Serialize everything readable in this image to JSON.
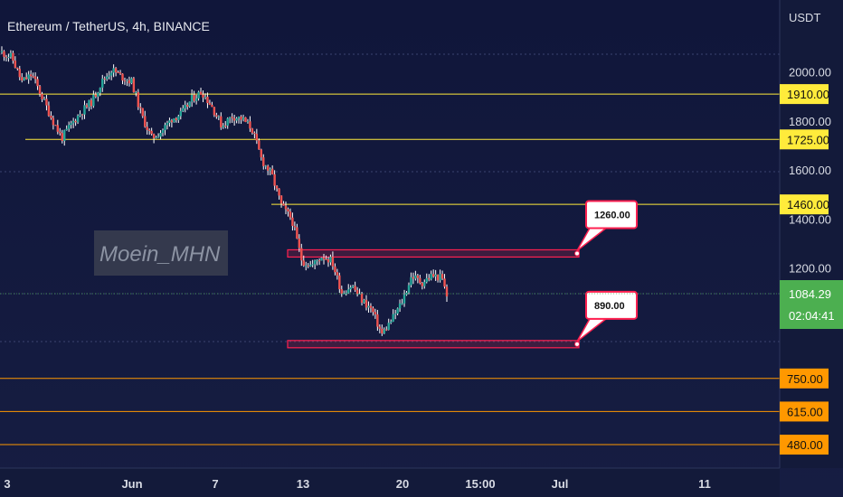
{
  "chart_title": "Ethereum / TetherUS, 4h, BINANCE",
  "watermark": "Moein_MHN",
  "currency_label": "USDT",
  "colors": {
    "background": "#131a3a",
    "bull": "#26a69a",
    "bear": "#ef5350",
    "wick": "#ffffff",
    "yellow_line": "#ffeb3b",
    "orange_line": "#ff9800",
    "zone": "#ff2050",
    "last_price": "#4caf50"
  },
  "last_price": {
    "value": "1084.29",
    "countdown": "02:04:41"
  },
  "chart_data": {
    "type": "candlestick",
    "title": "Ethereum / TetherUS, 4h, BINANCE",
    "xlabel": "",
    "ylabel": "USDT",
    "ylim": [
      460,
      2140
    ],
    "x_ticks": [
      "3",
      "Jun",
      "7",
      "13",
      "20",
      "15:00",
      "Jul",
      "11"
    ],
    "y_ticks": [
      "2000.00",
      "1800.00",
      "1600.00",
      "1400.00",
      "1200.00"
    ],
    "price_path": [
      [
        0,
        2080
      ],
      [
        2,
        2060
      ],
      [
        4,
        1960
      ],
      [
        6,
        1990
      ],
      [
        8,
        1900
      ],
      [
        10,
        1810
      ],
      [
        12,
        1730
      ],
      [
        14,
        1790
      ],
      [
        16,
        1840
      ],
      [
        18,
        1880
      ],
      [
        20,
        1960
      ],
      [
        22,
        2010
      ],
      [
        24,
        1980
      ],
      [
        26,
        1960
      ],
      [
        28,
        1820
      ],
      [
        30,
        1730
      ],
      [
        32,
        1760
      ],
      [
        34,
        1810
      ],
      [
        36,
        1830
      ],
      [
        38,
        1890
      ],
      [
        40,
        1920
      ],
      [
        42,
        1860
      ],
      [
        44,
        1780
      ],
      [
        46,
        1820
      ],
      [
        48,
        1810
      ],
      [
        50,
        1770
      ],
      [
        52,
        1640
      ],
      [
        54,
        1580
      ],
      [
        56,
        1450
      ],
      [
        58,
        1400
      ],
      [
        60,
        1230
      ],
      [
        62,
        1210
      ],
      [
        64,
        1250
      ],
      [
        66,
        1230
      ],
      [
        68,
        1100
      ],
      [
        70,
        1130
      ],
      [
        72,
        1070
      ],
      [
        74,
        1030
      ],
      [
        76,
        930
      ],
      [
        78,
        990
      ],
      [
        80,
        1060
      ],
      [
        82,
        1170
      ],
      [
        84,
        1140
      ],
      [
        86,
        1170
      ],
      [
        88,
        1160
      ],
      [
        89,
        1084
      ]
    ],
    "horizontal_levels": [
      {
        "price": 1910,
        "label": "1910.00",
        "color": "yellow"
      },
      {
        "price": 1725,
        "label": "1725.00",
        "color": "yellow"
      },
      {
        "price": 1460,
        "label": "1460.00",
        "color": "yellow"
      },
      {
        "price": 750,
        "label": "750.00",
        "color": "orange"
      },
      {
        "price": 615,
        "label": "615.00",
        "color": "orange"
      },
      {
        "price": 480,
        "label": "480.00",
        "color": "orange"
      }
    ],
    "zones": [
      {
        "price": 1260,
        "label": "1260.00"
      },
      {
        "price": 890,
        "label": "890.00"
      }
    ],
    "last_price": 1084.29
  }
}
